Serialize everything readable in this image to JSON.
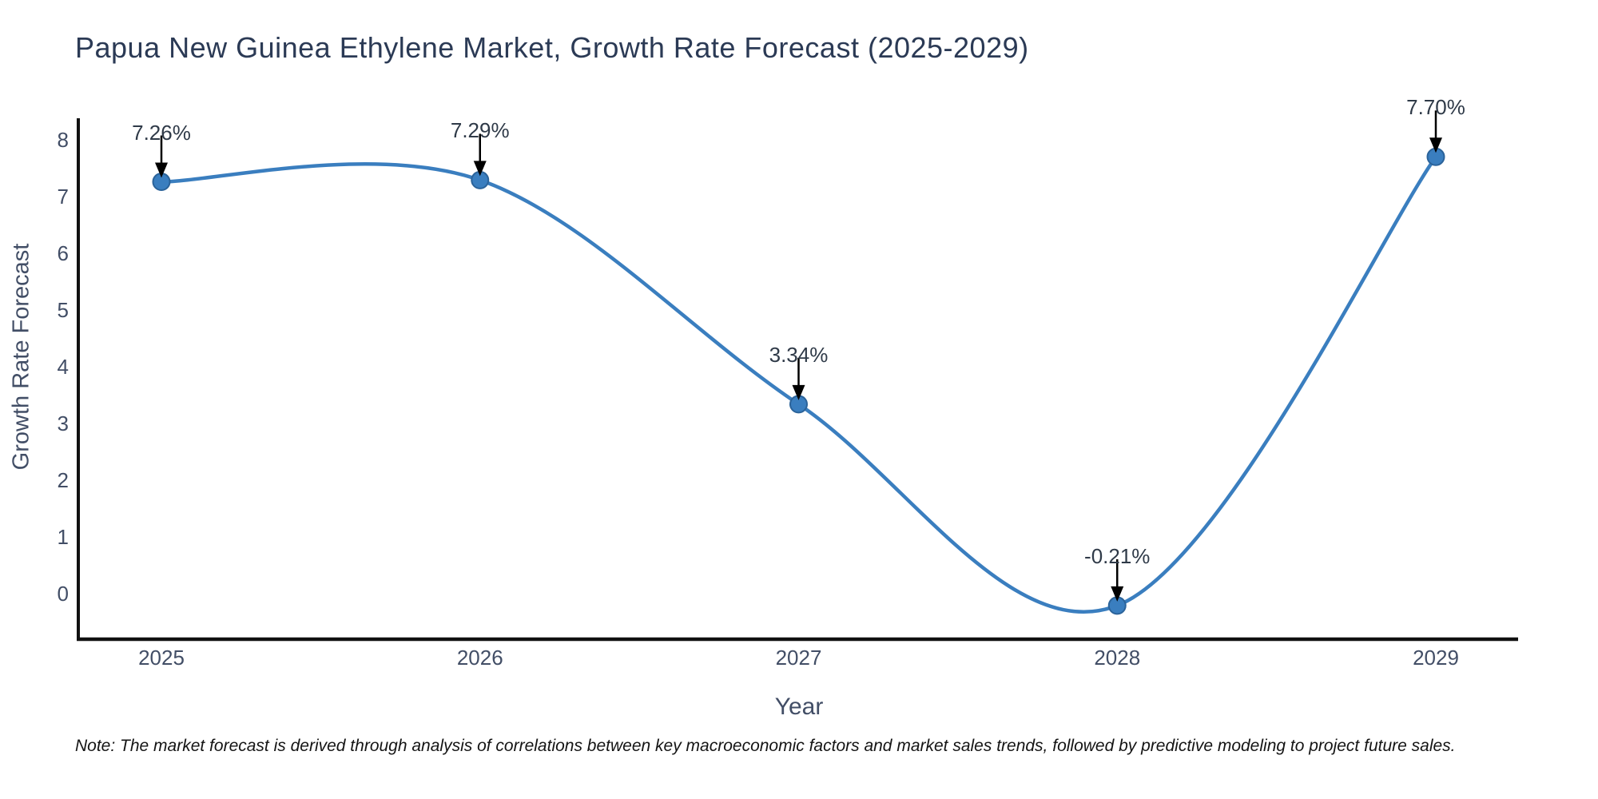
{
  "title": "Papua New Guinea Ethylene Market, Growth Rate Forecast (2025-2029)",
  "note": "Note: The market forecast is derived through analysis of correlations between key macroeconomic factors and market sales trends, followed by predictive modeling to project future sales.",
  "chart_data": {
    "type": "line",
    "title": "Papua New Guinea Ethylene Market, Growth Rate Forecast (2025-2029)",
    "xlabel": "Year",
    "ylabel": "Growth Rate Forecast",
    "x": [
      2025,
      2026,
      2027,
      2028,
      2029
    ],
    "values": [
      7.26,
      7.29,
      3.34,
      -0.21,
      7.7
    ],
    "labels": [
      "7.26%",
      "7.29%",
      "3.34%",
      "-0.21%",
      "7.70%"
    ],
    "x_ticks": [
      "2025",
      "2026",
      "2027",
      "2028",
      "2029"
    ],
    "y_ticks": [
      "8",
      "7",
      "6",
      "5",
      "4",
      "3",
      "2",
      "1",
      "0"
    ],
    "ylim": [
      -0.8,
      8.4
    ],
    "grid": false,
    "legend_position": "none",
    "line_shape": "spline",
    "marker": "circle",
    "annotation_arrows": true,
    "colors": {
      "line": "#3a7ebf",
      "marker_fill": "#3a7ebf",
      "marker_edge": "#2b639a",
      "arrow": "#000000",
      "axis": "#111111",
      "title_text": "#2b3a55",
      "tick_text": "#424e66",
      "annotation_text": "#2f3a48",
      "note_text": "#141414",
      "background": "#ffffff"
    }
  }
}
